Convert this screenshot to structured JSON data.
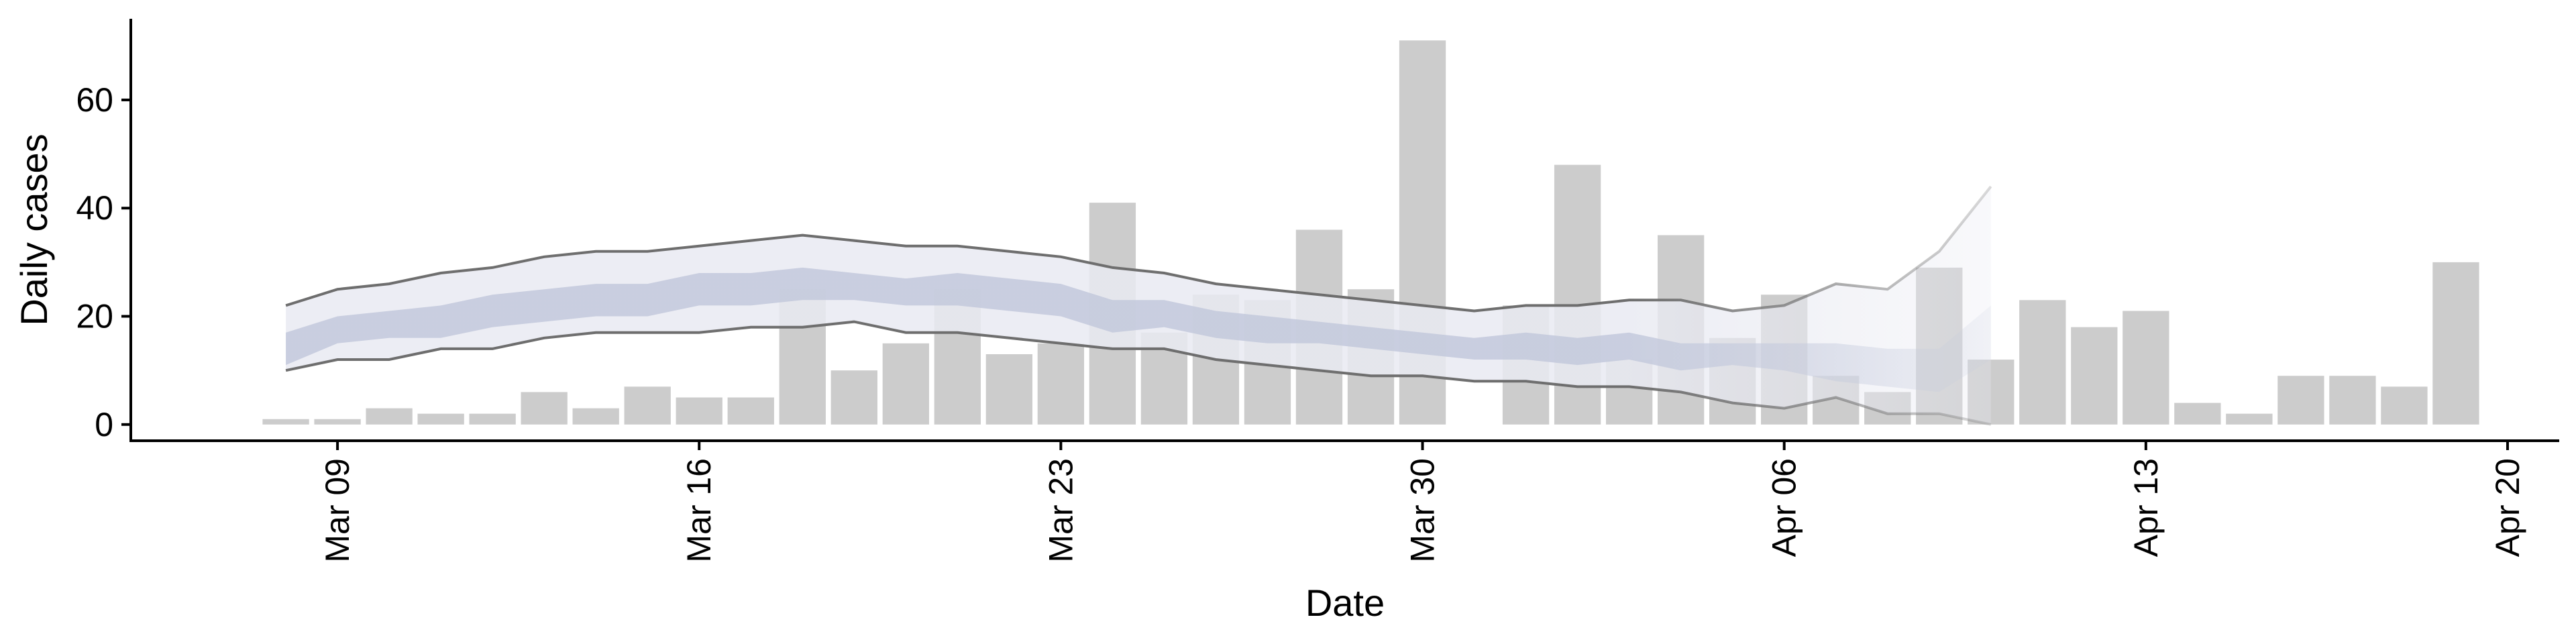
{
  "chart_data": {
    "type": "bar",
    "xlabel": "Date",
    "ylabel": "Daily cases",
    "x_ticks": [
      "Mar 09",
      "Mar 16",
      "Mar 23",
      "Mar 30",
      "Apr 06",
      "Apr 13",
      "Apr 20"
    ],
    "y_ticks": [
      0,
      20,
      40,
      60
    ],
    "xlim": [
      "2020-03-05",
      "2020-04-21"
    ],
    "ylim": [
      -3,
      75
    ],
    "grid": false,
    "legend": "none",
    "colors": {
      "bars": "#cccccc",
      "band_outer": "#e9eaf2",
      "band_inner": "#c3c9dc",
      "bound_lines": "#6e6e6e",
      "axis": "#000000"
    },
    "bars": {
      "dates": [
        "2020-03-08",
        "2020-03-09",
        "2020-03-10",
        "2020-03-11",
        "2020-03-12",
        "2020-03-13",
        "2020-03-14",
        "2020-03-15",
        "2020-03-16",
        "2020-03-17",
        "2020-03-18",
        "2020-03-19",
        "2020-03-20",
        "2020-03-21",
        "2020-03-22",
        "2020-03-23",
        "2020-03-24",
        "2020-03-25",
        "2020-03-26",
        "2020-03-27",
        "2020-03-28",
        "2020-03-29",
        "2020-03-30",
        "2020-03-31",
        "2020-04-01",
        "2020-04-02",
        "2020-04-03",
        "2020-04-04",
        "2020-04-05",
        "2020-04-06",
        "2020-04-07",
        "2020-04-08",
        "2020-04-09",
        "2020-04-10",
        "2020-04-11",
        "2020-04-12",
        "2020-04-13",
        "2020-04-14",
        "2020-04-15",
        "2020-04-16",
        "2020-04-17",
        "2020-04-18",
        "2020-04-19"
      ],
      "values": [
        1,
        1,
        3,
        2,
        2,
        6,
        3,
        7,
        5,
        5,
        25,
        10,
        15,
        25,
        13,
        15,
        41,
        17,
        24,
        23,
        36,
        25,
        71,
        0,
        22,
        48,
        12,
        35,
        16,
        24,
        9,
        6,
        29,
        12,
        23,
        18,
        21,
        4,
        2,
        9,
        9,
        7,
        30
      ]
    },
    "bands": {
      "dates": [
        "2020-03-08",
        "2020-03-09",
        "2020-03-10",
        "2020-03-11",
        "2020-03-12",
        "2020-03-13",
        "2020-03-14",
        "2020-03-15",
        "2020-03-16",
        "2020-03-17",
        "2020-03-18",
        "2020-03-19",
        "2020-03-20",
        "2020-03-21",
        "2020-03-22",
        "2020-03-23",
        "2020-03-24",
        "2020-03-25",
        "2020-03-26",
        "2020-03-27",
        "2020-03-28",
        "2020-03-29",
        "2020-03-30",
        "2020-03-31",
        "2020-04-01",
        "2020-04-02",
        "2020-04-03",
        "2020-04-04",
        "2020-04-05",
        "2020-04-06",
        "2020-04-07",
        "2020-04-08",
        "2020-04-09",
        "2020-04-10"
      ],
      "upper": [
        22,
        25,
        26,
        28,
        29,
        31,
        32,
        32,
        33,
        34,
        35,
        34,
        33,
        33,
        32,
        31,
        29,
        28,
        26,
        25,
        24,
        23,
        22,
        21,
        22,
        22,
        23,
        23,
        21,
        22,
        26,
        25,
        32,
        44
      ],
      "inner_upper": [
        17,
        20,
        21,
        22,
        24,
        25,
        26,
        26,
        28,
        28,
        29,
        28,
        27,
        28,
        27,
        26,
        23,
        23,
        21,
        20,
        19,
        18,
        17,
        16,
        17,
        16,
        17,
        15,
        15,
        15,
        15,
        14,
        14,
        22
      ],
      "inner_lower": [
        11,
        15,
        16,
        16,
        18,
        19,
        20,
        20,
        22,
        22,
        23,
        23,
        22,
        22,
        21,
        20,
        17,
        18,
        16,
        15,
        15,
        14,
        13,
        12,
        12,
        11,
        12,
        10,
        11,
        10,
        8,
        7,
        6,
        12
      ],
      "lower": [
        10,
        12,
        12,
        14,
        14,
        16,
        17,
        17,
        17,
        18,
        18,
        19,
        17,
        17,
        16,
        15,
        14,
        14,
        12,
        11,
        10,
        9,
        9,
        8,
        8,
        7,
        7,
        6,
        4,
        3,
        5,
        2,
        2,
        0
      ]
    }
  }
}
